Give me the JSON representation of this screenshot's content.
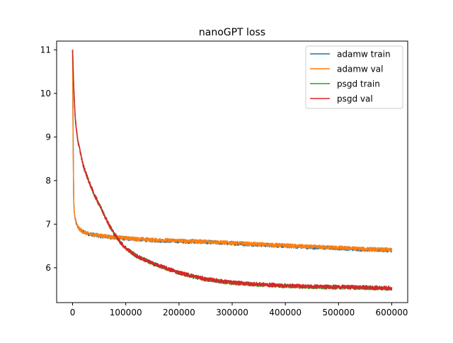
{
  "chart_data": {
    "type": "line",
    "title": "nanoGPT loss",
    "xlabel": "",
    "ylabel": "",
    "xlim": [
      -30000,
      630000
    ],
    "ylim": [
      5.2,
      11.2
    ],
    "xticks": [
      0,
      100000,
      200000,
      300000,
      400000,
      500000,
      600000
    ],
    "xtick_labels": [
      "0",
      "100000",
      "200000",
      "300000",
      "400000",
      "500000",
      "600000"
    ],
    "yticks": [
      6,
      7,
      8,
      9,
      10,
      11
    ],
    "ytick_labels": [
      "6",
      "7",
      "8",
      "9",
      "10",
      "11"
    ],
    "grid": false,
    "legend_position": "top-right",
    "series": [
      {
        "name": "adamw train",
        "color": "#1f77b4",
        "x": [
          0,
          1000,
          2000,
          3000,
          5000,
          8000,
          12000,
          20000,
          30000,
          50000,
          80000,
          100000,
          150000,
          200000,
          250000,
          300000,
          350000,
          400000,
          450000,
          500000,
          550000,
          600000
        ],
        "y": [
          11.0,
          9.0,
          7.6,
          7.3,
          7.1,
          6.98,
          6.9,
          6.82,
          6.78,
          6.73,
          6.69,
          6.67,
          6.63,
          6.61,
          6.59,
          6.56,
          6.53,
          6.5,
          6.47,
          6.45,
          6.42,
          6.4
        ]
      },
      {
        "name": "adamw val",
        "color": "#ff7f0e",
        "x": [
          0,
          1000,
          2000,
          3000,
          5000,
          8000,
          12000,
          20000,
          30000,
          50000,
          80000,
          100000,
          150000,
          200000,
          250000,
          300000,
          350000,
          400000,
          450000,
          500000,
          550000,
          600000
        ],
        "y": [
          11.0,
          9.0,
          7.6,
          7.3,
          7.1,
          6.98,
          6.9,
          6.82,
          6.78,
          6.74,
          6.7,
          6.68,
          6.64,
          6.62,
          6.6,
          6.57,
          6.54,
          6.51,
          6.48,
          6.46,
          6.43,
          6.41
        ]
      },
      {
        "name": "psgd train",
        "color": "#2ca02c",
        "x": [
          0,
          2000,
          5000,
          10000,
          20000,
          30000,
          40000,
          50000,
          60000,
          70000,
          80000,
          90000,
          100000,
          120000,
          150000,
          200000,
          250000,
          300000,
          350000,
          400000,
          450000,
          500000,
          550000,
          600000
        ],
        "y": [
          11.0,
          10.2,
          9.4,
          8.9,
          8.35,
          8.0,
          7.7,
          7.45,
          7.2,
          6.95,
          6.75,
          6.58,
          6.45,
          6.27,
          6.1,
          5.88,
          5.73,
          5.65,
          5.61,
          5.58,
          5.56,
          5.55,
          5.54,
          5.52
        ]
      },
      {
        "name": "psgd val",
        "color": "#d62728",
        "x": [
          0,
          2000,
          5000,
          10000,
          20000,
          30000,
          40000,
          50000,
          60000,
          70000,
          80000,
          90000,
          100000,
          120000,
          150000,
          200000,
          250000,
          300000,
          350000,
          400000,
          450000,
          500000,
          550000,
          600000
        ],
        "y": [
          11.0,
          10.2,
          9.4,
          8.9,
          8.35,
          8.0,
          7.7,
          7.45,
          7.2,
          6.95,
          6.75,
          6.58,
          6.45,
          6.27,
          6.1,
          5.89,
          5.74,
          5.66,
          5.62,
          5.59,
          5.57,
          5.56,
          5.55,
          5.53
        ]
      }
    ]
  }
}
